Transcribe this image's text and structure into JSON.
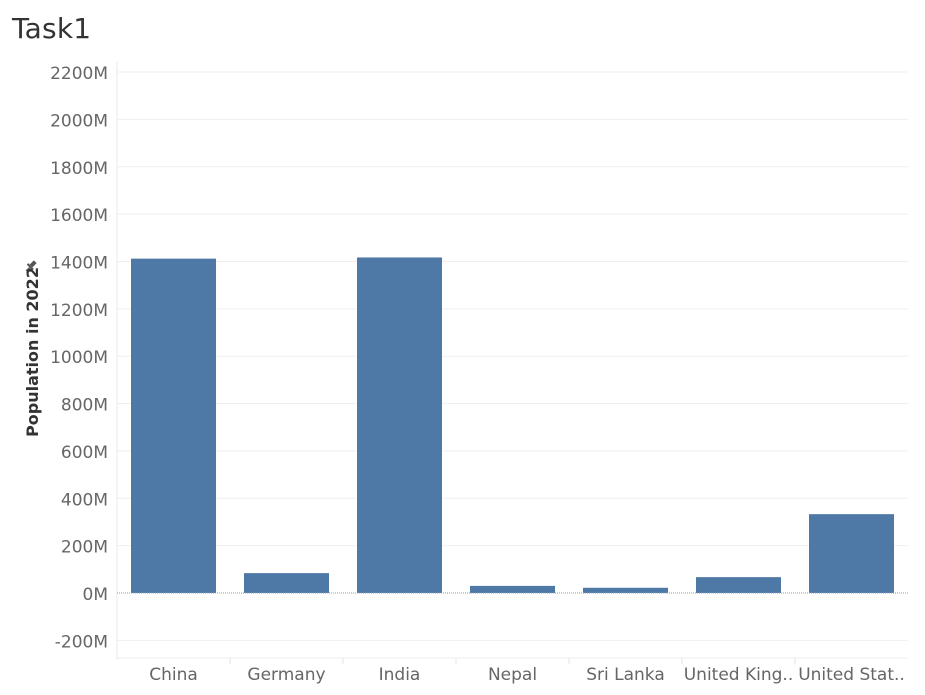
{
  "page": {
    "title": "Task1"
  },
  "chart_data": {
    "type": "bar",
    "title": "Task1",
    "xlabel": "",
    "ylabel": "Population in 2022",
    "categories": [
      "China",
      "Germany",
      "India",
      "Nepal",
      "Sri Lanka",
      "United King..",
      "United Stat.."
    ],
    "series": [
      {
        "values": [
          1412,
          84,
          1417,
          30,
          22,
          67,
          333
        ]
      }
    ],
    "ylim": [
      -250,
      2250
    ],
    "yticks": [
      -200,
      0,
      200,
      400,
      600,
      800,
      1000,
      1200,
      1400,
      1600,
      1800,
      2000,
      2200
    ],
    "ytick_labels": [
      "-200M",
      "0M",
      "200M",
      "400M",
      "600M",
      "800M",
      "1000M",
      "1200M",
      "1400M",
      "1600M",
      "1800M",
      "2000M",
      "2200M"
    ],
    "units": "M",
    "grid": true,
    "legend": "none",
    "colors": {
      "bar": "#4e79a7",
      "grid": "#efefef",
      "zero_line": "#9a9a9a",
      "tick_text": "#666666",
      "axis_label_text": "#333333"
    }
  }
}
